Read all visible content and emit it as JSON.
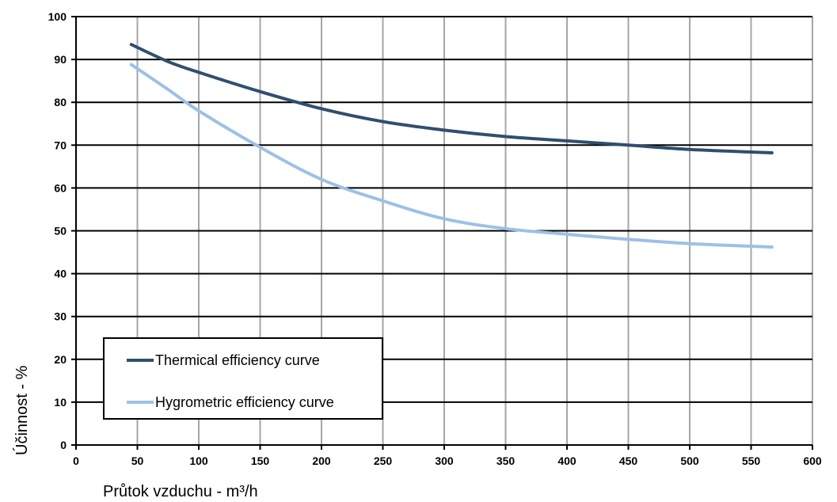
{
  "chart_data": {
    "type": "line",
    "xlabel": "Průtok vzduchu - m³/h",
    "ylabel": "Účinnost - %",
    "xlim": [
      0,
      600
    ],
    "ylim": [
      0,
      100
    ],
    "x_ticks": [
      "0",
      "50",
      "100",
      "150",
      "200",
      "250",
      "300",
      "350",
      "400",
      "450",
      "500",
      "550",
      "600"
    ],
    "y_ticks": [
      "0",
      "10",
      "20",
      "30",
      "40",
      "50",
      "60",
      "70",
      "80",
      "90",
      "100"
    ],
    "grid": true,
    "legend_position": "bottom-left",
    "series": [
      {
        "name": "Thermical efficiency curve",
        "color": "#2f4f6e",
        "x": [
          45,
          75,
          100,
          150,
          200,
          250,
          300,
          350,
          400,
          450,
          500,
          550,
          567
        ],
        "y": [
          93.5,
          89.5,
          87.0,
          82.5,
          78.5,
          75.5,
          73.5,
          72.0,
          71.0,
          70.0,
          69.0,
          68.4,
          68.2
        ]
      },
      {
        "name": "Hygrometric efficiency curve",
        "color": "#9dc0e6",
        "x": [
          45,
          75,
          100,
          150,
          200,
          250,
          300,
          350,
          400,
          450,
          500,
          550,
          567
        ],
        "y": [
          88.8,
          83.0,
          78.0,
          69.5,
          62.0,
          57.0,
          52.8,
          50.5,
          49.2,
          48.0,
          47.0,
          46.4,
          46.2
        ]
      }
    ]
  }
}
